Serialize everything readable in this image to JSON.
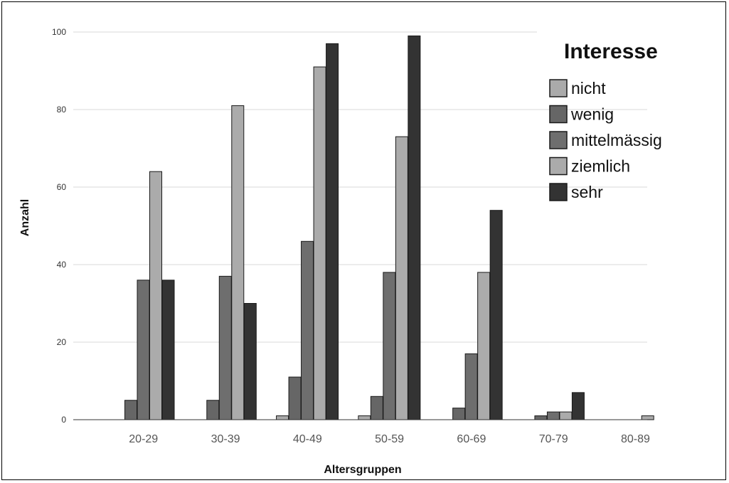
{
  "chart_data": {
    "type": "bar",
    "title": "",
    "xlabel": "Altersgruppen",
    "ylabel": "Anzahl",
    "ylim": [
      0,
      100
    ],
    "yticks": [
      0,
      20,
      40,
      60,
      80,
      100
    ],
    "grid": true,
    "legend_title": "Interesse",
    "legend_position": "top-right",
    "categories": [
      "20-29",
      "30-39",
      "40-49",
      "50-59",
      "60-69",
      "70-79",
      "80-89"
    ],
    "series": [
      {
        "name": "nicht",
        "color": "#aaaaaa",
        "values": [
          0,
          0,
          1,
          1,
          0,
          0,
          0
        ]
      },
      {
        "name": "wenig",
        "color": "#666666",
        "values": [
          5,
          5,
          11,
          6,
          3,
          1,
          0
        ]
      },
      {
        "name": "mittelmässig",
        "color": "#6e6e6e",
        "values": [
          36,
          37,
          46,
          38,
          17,
          2,
          0
        ]
      },
      {
        "name": "ziemlich",
        "color": "#ababab",
        "values": [
          64,
          81,
          91,
          73,
          38,
          2,
          1
        ]
      },
      {
        "name": "sehr",
        "color": "#333333",
        "values": [
          36,
          30,
          97,
          99,
          54,
          7,
          0
        ]
      }
    ]
  }
}
